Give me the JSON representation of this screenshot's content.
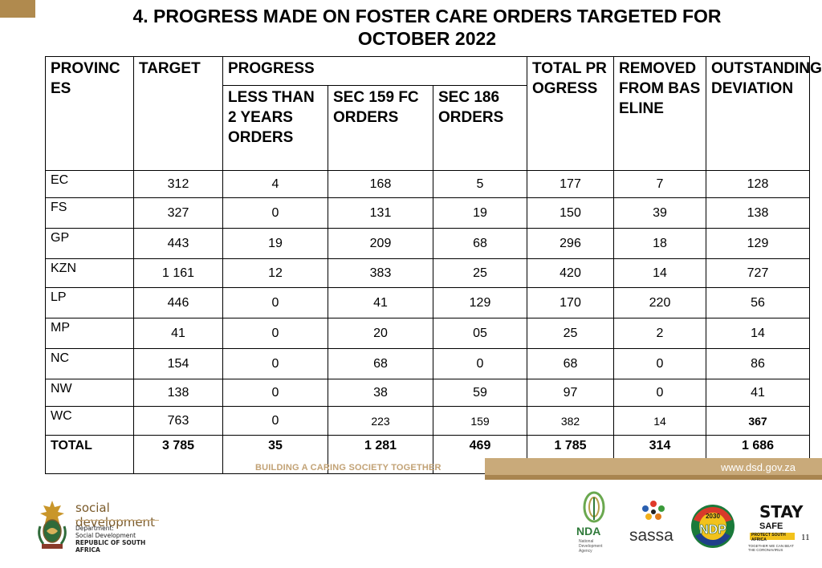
{
  "title": {
    "line1": "4. PROGRESS MADE ON FOSTER CARE ORDERS TARGETED FOR",
    "line2": "OCTOBER 2022"
  },
  "table": {
    "headers": {
      "provinces": "PROVINCES",
      "target": "TARGET",
      "progress": "PROGRESS",
      "less_than_2": "LESS THAN 2 YEARS ORDERS",
      "sec159": "SEC 159 FC ORDERS",
      "sec186": "SEC 186 ORDERS",
      "total_progress": "TOTAL PROGRESS",
      "removed": "REMOVED FROM BASELINE",
      "outstanding": "OUTSTANDING/ DEVIATION"
    },
    "rows": [
      {
        "province": "EC",
        "target": "312",
        "less2": "4",
        "sec159": "168",
        "sec186": "5",
        "total": "177",
        "removed": "7",
        "outstanding": "128"
      },
      {
        "province": "FS",
        "target": "327",
        "less2": "0",
        "sec159": "131",
        "sec186": "19",
        "total": "150",
        "removed": "39",
        "outstanding": "138"
      },
      {
        "province": "GP",
        "target": "443",
        "less2": "19",
        "sec159": "209",
        "sec186": "68",
        "total": "296",
        "removed": "18",
        "outstanding": "129"
      },
      {
        "province": "KZN",
        "target": "1 161",
        "less2": "12",
        "sec159": "383",
        "sec186": "25",
        "total": "420",
        "removed": "14",
        "outstanding": "727"
      },
      {
        "province": "LP",
        "target": "446",
        "less2": "0",
        "sec159": "41",
        "sec186": "129",
        "total": "170",
        "removed": "220",
        "outstanding": "56"
      },
      {
        "province": "MP",
        "target": "41",
        "less2": "0",
        "sec159": "20",
        "sec186": "05",
        "total": "25",
        "removed": "2",
        "outstanding": "14"
      },
      {
        "province": "NC",
        "target": "154",
        "less2": "0",
        "sec159": "68",
        "sec186": "0",
        "total": "68",
        "removed": "0",
        "outstanding": "86"
      },
      {
        "province": "NW",
        "target": "138",
        "less2": "0",
        "sec159": "38",
        "sec186": "59",
        "total": "97",
        "removed": "0",
        "outstanding": "41"
      },
      {
        "province": "WC",
        "target": "763",
        "less2": "0",
        "sec159": "223",
        "sec186": "159",
        "total": "382",
        "removed": "14",
        "outstanding": "367"
      }
    ],
    "total_row": {
      "province": "TOTAL",
      "target": "3 785",
      "less2": "35",
      "sec159": "1 281",
      "sec186": "469",
      "total": "1 785",
      "removed": "314",
      "outstanding": "1 686"
    }
  },
  "footer": {
    "slogan": "BUILDING A CARING SOCIETY TOGETHER",
    "url": "www.dsd.gov.za",
    "page_number": "11"
  },
  "logos": {
    "department": {
      "name": "social development",
      "line1": "Department:",
      "line2": "Social Development",
      "line3": "REPUBLIC OF SOUTH AFRICA"
    },
    "nda": {
      "name": "NDA",
      "sub": [
        "National",
        "Development",
        "Agency"
      ]
    },
    "sassa": {
      "name": "sassa"
    },
    "ndp": {
      "name": "NDP",
      "year": "2030"
    },
    "staysafe": {
      "big": "STAY",
      "safe": "SAFE",
      "bar": "PROTECT SOUTH AFRICA",
      "tag": "TOGETHER WE CAN BEAT THE CORONAVIRUS"
    }
  },
  "colors": {
    "brand_gold": "#b08a4e",
    "footer_band": "#c9aa7a",
    "slogan_text": "#c2a275",
    "ndp_green": "#1a7a3a",
    "ndp_yellow": "#f2c21b"
  }
}
